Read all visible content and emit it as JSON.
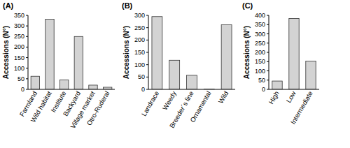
{
  "chart_data": [
    {
      "type": "bar",
      "title": "(A)",
      "y_label": "Accessions (N°)",
      "categories": [
        "Farmland",
        "Wild habitat",
        "Institute",
        "Backyard",
        "Village market",
        "Otro-Ruderal"
      ],
      "values": [
        62,
        332,
        45,
        250,
        20,
        10
      ],
      "color": "#d3d3d3",
      "ylim": [
        0,
        350
      ],
      "yticks": [
        0,
        50,
        100,
        150,
        200,
        250,
        300,
        350
      ]
    },
    {
      "type": "bar",
      "title": "(B)",
      "y_label": "Accessions (N°)",
      "categories": [
        "Landrace",
        "Weedy",
        "Breeder´s line",
        "Ornamental",
        "Wild"
      ],
      "values": [
        295,
        118,
        57,
        1,
        262
      ],
      "color": "#d3d3d3",
      "ylim": [
        0,
        300
      ],
      "yticks": [
        0,
        50,
        100,
        150,
        200,
        250,
        300
      ]
    },
    {
      "type": "bar",
      "title": "(C)",
      "y_label": "Accessions (N°)",
      "categories": [
        "High",
        "Low",
        "Intermediate"
      ],
      "values": [
        45,
        383,
        153
      ],
      "color": "#d3d3d3",
      "ylim": [
        0,
        400
      ],
      "yticks": [
        0,
        50,
        100,
        150,
        200,
        250,
        300,
        350,
        400
      ]
    }
  ]
}
